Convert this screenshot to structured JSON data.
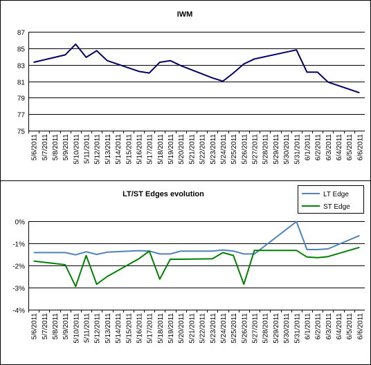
{
  "chart_data": [
    {
      "type": "line",
      "title": "IWM",
      "xlabel": "",
      "ylabel": "",
      "categories": [
        "5/6/2011",
        "5/7/2011",
        "5/8/2011",
        "5/9/2011",
        "5/10/2011",
        "5/11/2011",
        "5/12/2011",
        "5/13/2011",
        "5/14/2011",
        "5/15/2011",
        "5/16/2011",
        "5/17/2011",
        "5/18/2011",
        "5/19/2011",
        "5/20/2011",
        "5/21/2011",
        "5/22/2011",
        "5/23/2011",
        "5/24/2011",
        "5/25/2011",
        "5/26/2011",
        "5/27/2011",
        "5/28/2011",
        "5/29/2011",
        "5/30/2011",
        "5/31/2011",
        "6/1/2011",
        "6/2/2011",
        "6/3/2011",
        "6/4/2011",
        "6/5/2011",
        "6/6/2011"
      ],
      "yticks": [
        "75",
        "77",
        "79",
        "81",
        "83",
        "85",
        "87"
      ],
      "ylim": [
        75,
        87
      ],
      "grid": true,
      "series": [
        {
          "color": "#000066",
          "points": [
            [
              0,
              83.3
            ],
            [
              3,
              84.2
            ],
            [
              4,
              85.5
            ],
            [
              5,
              83.9
            ],
            [
              6,
              84.7
            ],
            [
              7,
              83.5
            ],
            [
              10,
              82.2
            ],
            [
              11,
              82.0
            ],
            [
              12,
              83.3
            ],
            [
              13,
              83.5
            ],
            [
              14,
              82.9
            ],
            [
              17,
              81.4
            ],
            [
              18,
              81.0
            ],
            [
              19,
              82.0
            ],
            [
              20,
              83.1
            ],
            [
              21,
              83.7
            ],
            [
              25,
              84.8
            ],
            [
              26,
              82.1
            ],
            [
              27,
              82.1
            ],
            [
              28,
              80.9
            ],
            [
              31,
              79.6
            ]
          ]
        }
      ]
    },
    {
      "type": "line",
      "title": "LT/ST Edges evolution",
      "xlabel": "",
      "ylabel": "",
      "categories": [
        "5/6/2011",
        "5/7/2011",
        "5/8/2011",
        "5/9/2011",
        "5/10/2011",
        "5/11/2011",
        "5/12/2011",
        "5/13/2011",
        "5/14/2011",
        "5/15/2011",
        "5/16/2011",
        "5/17/2011",
        "5/18/2011",
        "5/19/2011",
        "5/20/2011",
        "5/21/2011",
        "5/22/2011",
        "5/23/2011",
        "5/24/2011",
        "5/25/2011",
        "5/26/2011",
        "5/27/2011",
        "5/28/2011",
        "5/29/2011",
        "5/30/2011",
        "5/31/2011",
        "6/1/2011",
        "6/2/2011",
        "6/3/2011",
        "6/4/2011",
        "6/5/2011",
        "6/6/2011"
      ],
      "yticks": [
        "-4%",
        "-3%",
        "-2%",
        "-1%",
        "0%"
      ],
      "ylim": [
        -4,
        0
      ],
      "grid": true,
      "legend": "top-right",
      "series": [
        {
          "name": "LT Edge",
          "color": "#4f81bd",
          "points": [
            [
              0,
              -1.42
            ],
            [
              3,
              -1.42
            ],
            [
              4,
              -1.52
            ],
            [
              5,
              -1.38
            ],
            [
              6,
              -1.5
            ],
            [
              7,
              -1.4
            ],
            [
              10,
              -1.33
            ],
            [
              11,
              -1.35
            ],
            [
              12,
              -1.48
            ],
            [
              13,
              -1.48
            ],
            [
              14,
              -1.35
            ],
            [
              17,
              -1.35
            ],
            [
              18,
              -1.3
            ],
            [
              19,
              -1.35
            ],
            [
              20,
              -1.48
            ],
            [
              21,
              -1.48
            ],
            [
              25,
              -0.02
            ],
            [
              26,
              -1.28
            ],
            [
              27,
              -1.28
            ],
            [
              28,
              -1.25
            ],
            [
              31,
              -0.65
            ]
          ]
        },
        {
          "name": "ST Edge",
          "color": "#008000",
          "points": [
            [
              0,
              -1.8
            ],
            [
              3,
              -1.97
            ],
            [
              4,
              -2.95
            ],
            [
              5,
              -1.55
            ],
            [
              6,
              -2.85
            ],
            [
              7,
              -2.5
            ],
            [
              10,
              -1.7
            ],
            [
              11,
              -1.35
            ],
            [
              12,
              -2.62
            ],
            [
              13,
              -1.72
            ],
            [
              14,
              -1.72
            ],
            [
              17,
              -1.7
            ],
            [
              18,
              -1.42
            ],
            [
              19,
              -1.55
            ],
            [
              20,
              -2.85
            ],
            [
              21,
              -1.32
            ],
            [
              25,
              -1.32
            ],
            [
              26,
              -1.62
            ],
            [
              27,
              -1.65
            ],
            [
              28,
              -1.6
            ],
            [
              31,
              -1.18
            ]
          ]
        }
      ]
    }
  ]
}
